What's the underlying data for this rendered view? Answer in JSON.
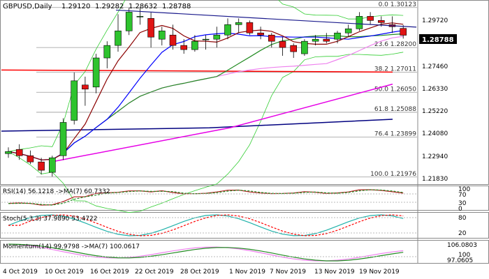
{
  "header": {
    "symbol": "GBPUSD,Daily",
    "open": "1.29120",
    "high": "1.29282",
    "low": "1.28632",
    "close": "1.28788"
  },
  "price_axis": {
    "ticks": [
      "1.29720",
      "1.27460",
      "1.26330",
      "1.25220",
      "1.24080",
      "1.22940",
      "1.21830"
    ],
    "current_price": "1.28788",
    "current_price_box_color": "#000000"
  },
  "fibonacci": [
    {
      "label": "0.0 1.30123",
      "value": 1.30123
    },
    {
      "label": "23.6 1.28200",
      "value": 1.282
    },
    {
      "label": "38.2 1.27011",
      "value": 1.27011
    },
    {
      "label": "50.0 1.26050",
      "value": 1.2605
    },
    {
      "label": "61.8 1.25088",
      "value": 1.25088
    },
    {
      "label": "76.4 1.23899",
      "value": 1.23899
    },
    {
      "label": "100.0 1.21976",
      "value": 1.21976
    }
  ],
  "rsi": {
    "label": "RSI(14) 56.1218  ->MA(7) 60.7332",
    "ticks": [
      "100",
      "70",
      "30",
      "0"
    ]
  },
  "stoch": {
    "label": "Stoch(5,3,3) 37.9890 53.4722",
    "ticks": [
      "80",
      "20"
    ]
  },
  "momentum": {
    "label": "Momentum(14) 99.9798  ->MA(7) 100.0617",
    "ticks": [
      "106.0803",
      "100",
      "97.0605"
    ]
  },
  "time_axis": [
    "4 Oct 2019",
    "10 Oct 2019",
    "16 Oct 2019",
    "22 Oct 2019",
    "28 Oct 2019",
    "1 Nov 2019",
    "7 Nov 2019",
    "13 Nov 2019",
    "19 Nov 2019"
  ],
  "colors": {
    "bull": "#2ec32e",
    "bear": "#e01414",
    "ma_dark_red": "#8b0000",
    "ma_blue": "#0000ff",
    "ma_green": "#228b22",
    "ma_violet": "#ee82ee",
    "ma_magenta": "#e600e6",
    "ma_red": "#ff0000",
    "ma_navy": "#000080",
    "bollinger": "#32cd32",
    "trendline": "#1a1a8c"
  },
  "chart_data": {
    "type": "candlestick",
    "instrument": "GBPUSD",
    "timeframe": "Daily",
    "ohlc_current": {
      "open": 1.2912,
      "high": 1.29282,
      "low": 1.28632,
      "close": 1.28788
    },
    "candles": [
      {
        "date": "2019-10-03",
        "o": 1.231,
        "h": 1.234,
        "l": 1.229,
        "c": 1.232
      },
      {
        "date": "2019-10-04",
        "o": 1.233,
        "h": 1.2355,
        "l": 1.228,
        "c": 1.23
      },
      {
        "date": "2019-10-07",
        "o": 1.23,
        "h": 1.2325,
        "l": 1.226,
        "c": 1.227
      },
      {
        "date": "2019-10-08",
        "o": 1.227,
        "h": 1.229,
        "l": 1.221,
        "c": 1.223
      },
      {
        "date": "2019-10-09",
        "o": 1.222,
        "h": 1.23,
        "l": 1.22,
        "c": 1.229
      },
      {
        "date": "2019-10-10",
        "o": 1.23,
        "h": 1.248,
        "l": 1.228,
        "c": 1.246
      },
      {
        "date": "2019-10-11",
        "o": 1.247,
        "h": 1.27,
        "l": 1.245,
        "c": 1.266
      },
      {
        "date": "2019-10-14",
        "o": 1.264,
        "h": 1.268,
        "l": 1.254,
        "c": 1.262
      },
      {
        "date": "2019-10-15",
        "o": 1.263,
        "h": 1.279,
        "l": 1.26,
        "c": 1.277
      },
      {
        "date": "2019-10-16",
        "o": 1.277,
        "h": 1.285,
        "l": 1.272,
        "c": 1.283
      },
      {
        "date": "2019-10-17",
        "o": 1.283,
        "h": 1.298,
        "l": 1.28,
        "c": 1.29
      },
      {
        "date": "2019-10-18",
        "o": 1.29,
        "h": 1.301,
        "l": 1.288,
        "c": 1.299
      },
      {
        "date": "2019-10-21",
        "o": 1.297,
        "h": 1.3012,
        "l": 1.293,
        "c": 1.297
      },
      {
        "date": "2019-10-22",
        "o": 1.296,
        "h": 1.299,
        "l": 1.282,
        "c": 1.287
      },
      {
        "date": "2019-10-23",
        "o": 1.286,
        "h": 1.292,
        "l": 1.283,
        "c": 1.29
      },
      {
        "date": "2019-10-24",
        "o": 1.288,
        "h": 1.293,
        "l": 1.281,
        "c": 1.283
      },
      {
        "date": "2019-10-25",
        "o": 1.283,
        "h": 1.286,
        "l": 1.279,
        "c": 1.281
      },
      {
        "date": "2019-10-28",
        "o": 1.281,
        "h": 1.288,
        "l": 1.28,
        "c": 1.285
      },
      {
        "date": "2019-10-29",
        "o": 1.286,
        "h": 1.288,
        "l": 1.281,
        "c": 1.286
      },
      {
        "date": "2019-10-30",
        "o": 1.286,
        "h": 1.292,
        "l": 1.282,
        "c": 1.288
      },
      {
        "date": "2019-10-31",
        "o": 1.288,
        "h": 1.296,
        "l": 1.286,
        "c": 1.293
      },
      {
        "date": "2019-11-01",
        "o": 1.293,
        "h": 1.296,
        "l": 1.289,
        "c": 1.294
      },
      {
        "date": "2019-11-04",
        "o": 1.294,
        "h": 1.295,
        "l": 1.288,
        "c": 1.289
      },
      {
        "date": "2019-11-05",
        "o": 1.289,
        "h": 1.292,
        "l": 1.286,
        "c": 1.288
      },
      {
        "date": "2019-11-06",
        "o": 1.288,
        "h": 1.289,
        "l": 1.282,
        "c": 1.285
      },
      {
        "date": "2019-11-07",
        "o": 1.285,
        "h": 1.287,
        "l": 1.278,
        "c": 1.282
      },
      {
        "date": "2019-11-08",
        "o": 1.283,
        "h": 1.284,
        "l": 1.277,
        "c": 1.28
      },
      {
        "date": "2019-11-11",
        "o": 1.279,
        "h": 1.286,
        "l": 1.278,
        "c": 1.285
      },
      {
        "date": "2019-11-12",
        "o": 1.285,
        "h": 1.288,
        "l": 1.283,
        "c": 1.286
      },
      {
        "date": "2019-11-13",
        "o": 1.286,
        "h": 1.289,
        "l": 1.284,
        "c": 1.285
      },
      {
        "date": "2019-11-14",
        "o": 1.286,
        "h": 1.29,
        "l": 1.284,
        "c": 1.289
      },
      {
        "date": "2019-11-15",
        "o": 1.289,
        "h": 1.293,
        "l": 1.287,
        "c": 1.291
      },
      {
        "date": "2019-11-18",
        "o": 1.291,
        "h": 1.299,
        "l": 1.29,
        "c": 1.297
      },
      {
        "date": "2019-11-19",
        "o": 1.297,
        "h": 1.299,
        "l": 1.293,
        "c": 1.295
      },
      {
        "date": "2019-11-20",
        "o": 1.295,
        "h": 1.297,
        "l": 1.292,
        "c": 1.294
      },
      {
        "date": "2019-11-21",
        "o": 1.293,
        "h": 1.297,
        "l": 1.289,
        "c": 1.292
      },
      {
        "date": "2019-11-22",
        "o": 1.2912,
        "h": 1.2928,
        "l": 1.2863,
        "c": 1.2879
      }
    ],
    "ylim": [
      1.217,
      1.3035
    ],
    "grid": false,
    "indicators": {
      "rsi": {
        "value": 56.1218,
        "ma": 60.7332,
        "levels": [
          70,
          30
        ]
      },
      "stoch": {
        "k": 37.989,
        "d": 53.4722,
        "levels": [
          80,
          20
        ]
      },
      "momentum": {
        "value": 99.9798,
        "ma": 100.0617,
        "level": 100
      }
    }
  }
}
